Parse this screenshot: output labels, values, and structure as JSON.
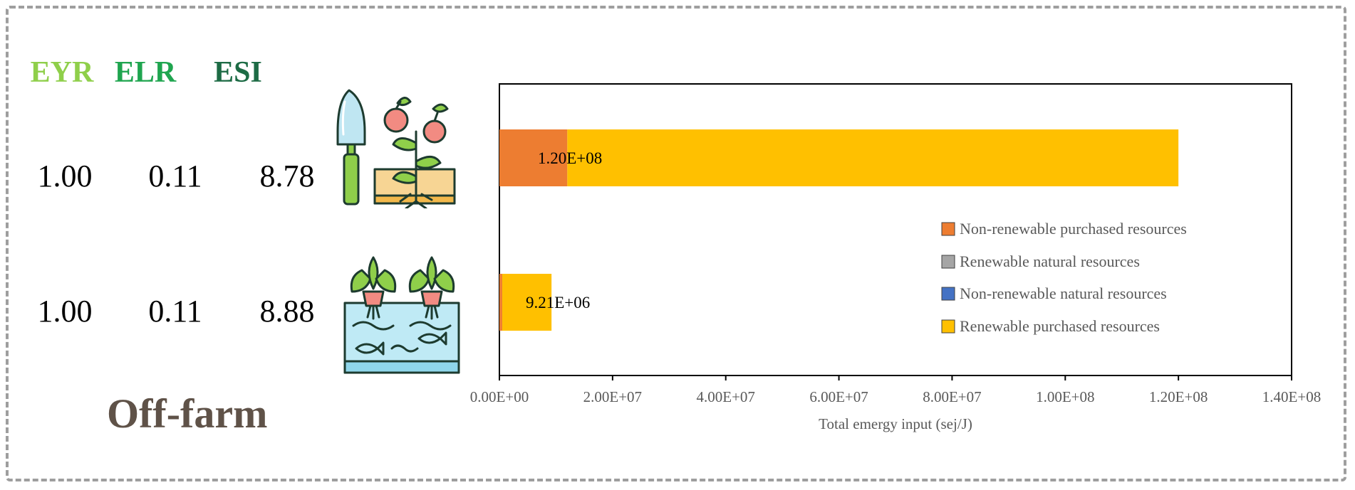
{
  "colors": {
    "eyr": "#8fcf4a",
    "elr": "#1fa54f",
    "esi": "#1d6b45",
    "off_farm": "#5f5248",
    "frame": "#9e9e9e"
  },
  "indicators": {
    "headers": [
      "EYR",
      "ELR",
      "ESI"
    ],
    "rows": [
      {
        "icon": "soil-cultivation-icon",
        "EYR": "1.00",
        "ELR": "0.11",
        "ESI": "8.78"
      },
      {
        "icon": "aquaponics-icon",
        "EYR": "1.00",
        "ELR": "0.11",
        "ESI": "8.88"
      }
    ]
  },
  "label": "Off-farm",
  "chart_data": {
    "type": "bar",
    "orientation": "horizontal",
    "stacked": true,
    "categories": [
      "soil cultivation",
      "aquaponics"
    ],
    "series": [
      {
        "name": "Non-renewable purchased resources",
        "color": "#ED7D31",
        "values": [
          12000000,
          500000
        ]
      },
      {
        "name": "Renewable natural resources",
        "color": "#A5A5A5",
        "values": [
          0,
          0
        ]
      },
      {
        "name": "Non-renewable natural resources",
        "color": "#4472C4",
        "values": [
          0,
          0
        ]
      },
      {
        "name": "Renewable purchased resources",
        "color": "#FFC000",
        "values": [
          108000000,
          8710000
        ]
      }
    ],
    "data_labels": [
      "1.20E+08",
      "9.21E+06"
    ],
    "xlabel": "Total emergy input (sej/J)",
    "xlim": [
      0,
      140000000
    ],
    "xticks": [
      "0.00E+00",
      "2.00E+07",
      "4.00E+07",
      "6.00E+07",
      "8.00E+07",
      "1.00E+08",
      "1.20E+08",
      "1.40E+08"
    ],
    "grid": false,
    "legend_position": "right"
  }
}
